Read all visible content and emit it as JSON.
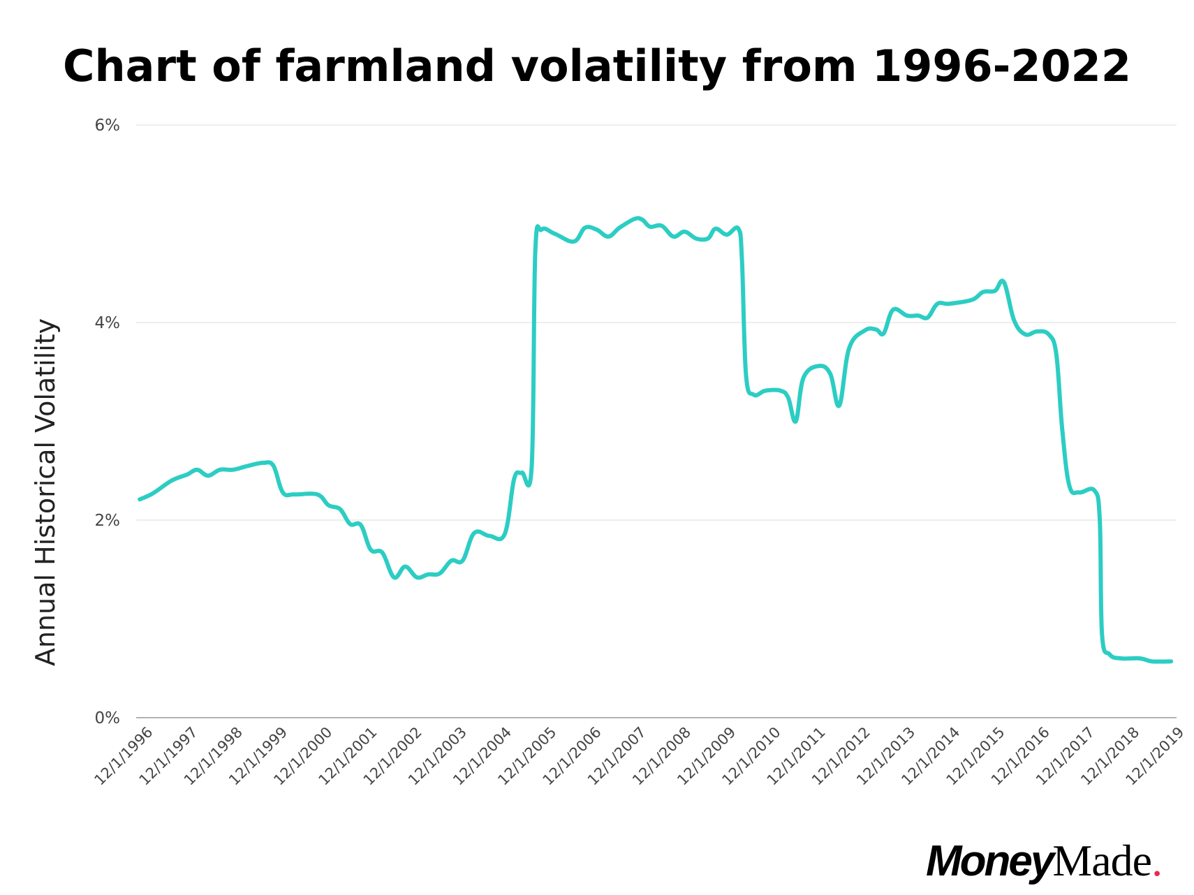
{
  "chart_data": {
    "type": "line",
    "title": "Chart of farmland volatility from 1996-2022",
    "xlabel": "",
    "ylabel": "Annual Historical Volatility",
    "ylim": [
      0,
      6
    ],
    "xlim": [
      1996.917,
      2019.917
    ],
    "yticks": [
      0,
      2,
      4,
      6
    ],
    "ytick_labels": [
      "0%",
      "2%",
      "4%",
      "6%"
    ],
    "xtick_labels": [
      "12/1/1996",
      "12/1/1997",
      "12/1/1998",
      "12/1/1999",
      "12/1/2000",
      "12/1/2001",
      "12/1/2002",
      "12/1/2003",
      "12/1/2004",
      "12/1/2005",
      "12/1/2006",
      "12/1/2007",
      "12/1/2008",
      "12/1/2009",
      "12/1/2010",
      "12/1/2011",
      "12/1/2012",
      "12/1/2013",
      "12/1/2014",
      "12/1/2015",
      "12/1/2016",
      "12/1/2017",
      "12/1/2018",
      "12/1/2019"
    ],
    "grid": true,
    "legend": "none",
    "series": [
      {
        "name": "Annual Historical Volatility",
        "color": "#2ccdc3",
        "x": [
          1996.92,
          1997.21,
          1997.63,
          1997.97,
          1998.2,
          1998.44,
          1998.71,
          1999.0,
          1999.34,
          1999.68,
          1999.9,
          2000.11,
          2000.37,
          2000.88,
          2001.13,
          2001.39,
          2001.61,
          2001.85,
          2002.07,
          2002.33,
          2002.59,
          2002.84,
          2003.1,
          2003.35,
          2003.61,
          2003.87,
          2004.12,
          2004.38,
          2004.72,
          2005.06,
          2005.27,
          2005.44,
          2005.66,
          2005.74,
          2005.88,
          2006.17,
          2006.6,
          2006.85,
          2007.11,
          2007.37,
          2007.62,
          2007.96,
          2008.13,
          2008.3,
          2008.56,
          2008.82,
          2009.07,
          2009.33,
          2009.59,
          2009.76,
          2010.01,
          2010.27,
          2010.35,
          2010.44,
          2010.61,
          2010.87,
          2011.21,
          2011.38,
          2011.55,
          2011.72,
          2012.06,
          2012.32,
          2012.52,
          2012.74,
          2013.09,
          2013.34,
          2013.51,
          2013.72,
          2014.03,
          2014.28,
          2014.49,
          2014.71,
          2014.97,
          2015.48,
          2015.73,
          2015.99,
          2016.19,
          2016.42,
          2016.67,
          2016.93,
          2017.19,
          2017.36,
          2017.49,
          2017.65,
          2017.87,
          2018.21,
          2018.33,
          2018.38,
          2018.55,
          2018.81,
          2019.23,
          2019.49,
          2019.92
        ],
        "y": [
          2.21,
          2.27,
          2.4,
          2.46,
          2.51,
          2.45,
          2.51,
          2.51,
          2.55,
          2.58,
          2.55,
          2.28,
          2.26,
          2.26,
          2.15,
          2.11,
          1.96,
          1.95,
          1.7,
          1.67,
          1.42,
          1.53,
          1.42,
          1.45,
          1.46,
          1.59,
          1.59,
          1.87,
          1.84,
          1.86,
          2.42,
          2.48,
          2.54,
          4.71,
          4.94,
          4.9,
          4.82,
          4.96,
          4.94,
          4.87,
          4.96,
          5.05,
          5.04,
          4.97,
          4.98,
          4.87,
          4.92,
          4.85,
          4.85,
          4.95,
          4.89,
          4.95,
          4.63,
          3.47,
          3.27,
          3.31,
          3.31,
          3.24,
          3.0,
          3.44,
          3.56,
          3.48,
          3.16,
          3.74,
          3.92,
          3.93,
          3.89,
          4.13,
          4.07,
          4.07,
          4.05,
          4.19,
          4.19,
          4.23,
          4.31,
          4.32,
          4.41,
          4.02,
          3.88,
          3.91,
          3.88,
          3.68,
          2.93,
          2.35,
          2.28,
          2.3,
          2.0,
          0.84,
          0.64,
          0.6,
          0.6,
          0.57,
          0.57
        ]
      }
    ],
    "colors": {
      "grid": "#dddddd",
      "axis": "#999999",
      "tick_text": "#444444"
    }
  },
  "logo": {
    "text": "MoneyMade",
    "part1": "Money",
    "part2": "Made",
    "dot": ".",
    "dot_color": "#e8294c"
  }
}
